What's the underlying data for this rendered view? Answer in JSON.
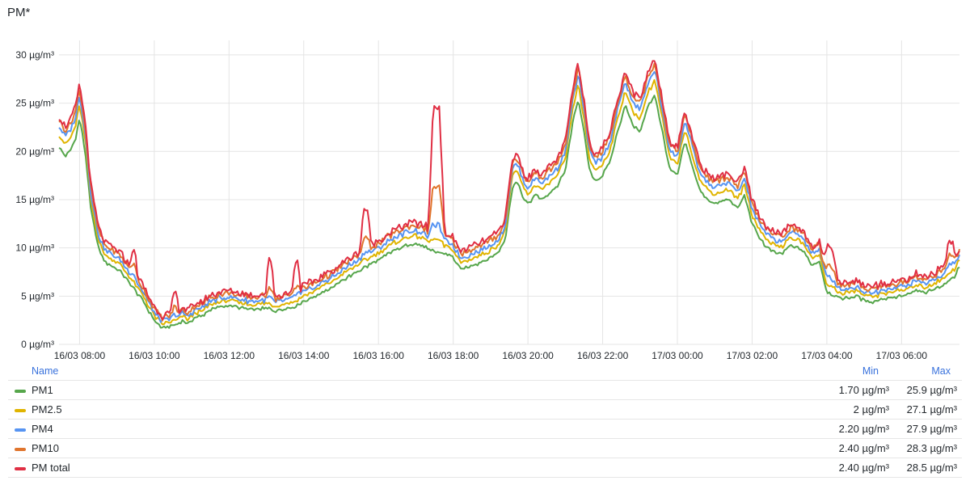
{
  "panel": {
    "title": "PM*"
  },
  "chart_data": {
    "type": "line",
    "unit": "µg/m³",
    "y_ticks": [
      "0 µg/m³",
      "5 µg/m³",
      "10 µg/m³",
      "15 µg/m³",
      "20 µg/m³",
      "25 µg/m³",
      "30 µg/m³"
    ],
    "y_tick_values": [
      0,
      5,
      10,
      15,
      20,
      25,
      30
    ],
    "ylim": [
      0,
      31.5
    ],
    "x_ticks": [
      "16/03 08:00",
      "16/03 10:00",
      "16/03 12:00",
      "16/03 14:00",
      "16/03 16:00",
      "16/03 18:00",
      "16/03 20:00",
      "16/03 22:00",
      "17/03 00:00",
      "17/03 02:00",
      "17/03 04:00",
      "17/03 06:00"
    ],
    "x_tick_hours": [
      8,
      10,
      12,
      14,
      16,
      18,
      20,
      22,
      24,
      26,
      28,
      30
    ],
    "xlim_hours": [
      7.45,
      31.55
    ],
    "grid": true,
    "legend_placement": "bottom",
    "base_series": {
      "x_hours": [
        7.45,
        7.6,
        7.75,
        7.9,
        8.0,
        8.15,
        8.3,
        8.5,
        8.7,
        8.9,
        9.1,
        9.3,
        9.5,
        9.7,
        9.85,
        10.0,
        10.2,
        10.4,
        10.6,
        10.75,
        10.9,
        11.1,
        11.3,
        11.5,
        11.7,
        11.9,
        12.0,
        12.2,
        12.4,
        12.6,
        12.8,
        13.0,
        13.2,
        13.4,
        13.6,
        13.8,
        14.0,
        14.2,
        14.4,
        14.6,
        14.8,
        15.0,
        15.2,
        15.4,
        15.6,
        15.8,
        16.0,
        16.2,
        16.4,
        16.6,
        16.8,
        17.0,
        17.2,
        17.4,
        17.6,
        17.8,
        18.0,
        18.2,
        18.4,
        18.6,
        18.8,
        19.0,
        19.2,
        19.4,
        19.5,
        19.6,
        19.7,
        19.8,
        19.9,
        20.0,
        20.2,
        20.4,
        20.6,
        20.8,
        21.0,
        21.2,
        21.35,
        21.5,
        21.65,
        21.8,
        22.0,
        22.2,
        22.4,
        22.6,
        22.8,
        23.0,
        23.2,
        23.4,
        23.6,
        23.8,
        24.0,
        24.2,
        24.4,
        24.6,
        24.8,
        25.0,
        25.2,
        25.4,
        25.6,
        25.8,
        26.0,
        26.2,
        26.4,
        26.6,
        26.8,
        27.0,
        27.2,
        27.4,
        27.6,
        27.8,
        28.0,
        28.2,
        28.4,
        28.6,
        28.8,
        29.0,
        29.2,
        29.4,
        29.6,
        29.8,
        30.0,
        30.2,
        30.4,
        30.6,
        30.8,
        31.0,
        31.2,
        31.4,
        31.55
      ],
      "values": [
        20.5,
        19.5,
        20.0,
        21.5,
        23.5,
        20.0,
        14.0,
        10.0,
        8.5,
        8.0,
        7.5,
        6.5,
        5.5,
        4.5,
        3.5,
        2.5,
        1.7,
        1.9,
        2.0,
        2.4,
        2.2,
        2.8,
        3.0,
        3.6,
        3.8,
        4.0,
        4.0,
        3.9,
        3.7,
        3.6,
        3.6,
        3.8,
        3.5,
        3.6,
        3.8,
        4.0,
        4.5,
        4.8,
        5.2,
        5.6,
        6.0,
        6.5,
        7.0,
        7.4,
        7.9,
        8.3,
        8.7,
        9.2,
        9.7,
        10.0,
        10.3,
        10.4,
        10.2,
        9.7,
        9.5,
        9.4,
        9.0,
        7.8,
        8.0,
        8.3,
        8.6,
        9.0,
        9.5,
        11.0,
        14.0,
        16.5,
        17.0,
        16.0,
        15.0,
        14.5,
        15.5,
        15.0,
        15.8,
        16.5,
        18.0,
        23.0,
        25.5,
        22.0,
        18.0,
        17.0,
        17.5,
        19.0,
        22.0,
        24.8,
        22.8,
        22.0,
        24.5,
        25.9,
        22.0,
        18.0,
        17.5,
        21.0,
        18.5,
        16.0,
        15.0,
        14.5,
        14.8,
        15.0,
        14.0,
        15.5,
        12.5,
        11.0,
        10.0,
        9.5,
        9.4,
        10.2,
        10.0,
        9.5,
        8.2,
        8.6,
        5.5,
        5.0,
        4.8,
        4.9,
        5.0,
        4.5,
        4.4,
        4.6,
        4.8,
        4.9,
        5.0,
        5.2,
        5.6,
        5.3,
        5.6,
        6.0,
        6.4,
        7.0,
        8.0
      ],
      "note_offsets": "per-series scale and offset applied in script"
    },
    "series": [
      {
        "name": "PM1",
        "color": "#56a64b",
        "min": "1.70 µg/m³",
        "max": "25.9 µg/m³",
        "scale": 1.0,
        "add": 0.0
      },
      {
        "name": "PM2.5",
        "color": "#e0b400",
        "min": "2 µg/m³",
        "max": "27.1 µg/m³",
        "scale": 1.045,
        "add": 0.35
      },
      {
        "name": "PM4",
        "color": "#5794f2",
        "min": "2.20 µg/m³",
        "max": "27.9 µg/m³",
        "scale": 1.075,
        "add": 0.6
      },
      {
        "name": "PM10",
        "color": "#e0752d",
        "min": "2.40 µg/m³",
        "max": "28.3 µg/m³",
        "scale": 1.09,
        "add": 0.95
      },
      {
        "name": "PM total",
        "color": "#e02f44",
        "min": "2.40 µg/m³",
        "max": "28.5 µg/m³",
        "scale": 1.1,
        "add": 1.15
      }
    ],
    "spikes": [
      {
        "x": 17.55,
        "width": 0.22,
        "values": [
          0,
          0.5,
          1.5,
          5.0,
          13.0
        ]
      },
      {
        "x": 15.65,
        "width": 0.15,
        "values": [
          0,
          0,
          0.3,
          1.2,
          4.0
        ]
      },
      {
        "x": 13.1,
        "width": 0.12,
        "values": [
          0,
          0,
          0.3,
          1.0,
          3.5
        ]
      },
      {
        "x": 13.8,
        "width": 0.12,
        "values": [
          0,
          0,
          0.3,
          0.8,
          3.0
        ]
      },
      {
        "x": 9.45,
        "width": 0.12,
        "values": [
          0,
          0,
          0.4,
          0.9,
          2.0
        ]
      },
      {
        "x": 10.55,
        "width": 0.1,
        "values": [
          0,
          0,
          0.3,
          0.7,
          2.0
        ]
      },
      {
        "x": 28.1,
        "width": 0.2,
        "values": [
          0,
          0.2,
          0.6,
          1.4,
          3.0
        ]
      },
      {
        "x": 31.3,
        "width": 0.15,
        "values": [
          0,
          0.2,
          0.5,
          1.0,
          2.0
        ]
      }
    ]
  },
  "legend": {
    "header_name": "Name",
    "header_min": "Min",
    "header_max": "Max"
  }
}
